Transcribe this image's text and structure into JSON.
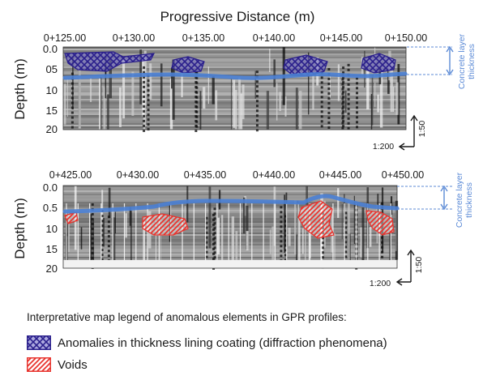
{
  "top_axis_title": "Progressive Distance (m)",
  "profiles": [
    {
      "stations": [
        "0+125.00",
        "0+130.00",
        "0+135.00",
        "0+140.00",
        "0+145.00",
        "0+150.00"
      ],
      "depth_label": "Depth (m)",
      "depth_ticks": [
        "0.0",
        "05",
        "10",
        "15",
        "20"
      ],
      "scale_vertical": "1:50",
      "scale_horizontal": "1:200",
      "thickness_label_lines": [
        "Concrete layer",
        "thickness"
      ],
      "anomaly_type": "coating"
    },
    {
      "stations": [
        "0+425.00",
        "0+430.00",
        "0+435.00",
        "0+440.00",
        "0+445.00",
        "0+450.00"
      ],
      "depth_label": "Depth (m)",
      "depth_ticks": [
        "0.0",
        "0.5",
        "10",
        "15",
        "20"
      ],
      "scale_vertical": "1:50",
      "scale_horizontal": "1:200",
      "thickness_label_lines": [
        "Concrete layer",
        "thickness"
      ],
      "anomaly_type": "void"
    }
  ],
  "legend": {
    "title": "Interpretative map legend of anomalous elements in GPR profiles:",
    "items": [
      {
        "label": "Anomalies in thickness lining coating (diffraction phenomena)",
        "color": "#3a2f9c"
      },
      {
        "label": "Voids",
        "color": "#e8342e"
      }
    ]
  },
  "colors": {
    "interface_line": "#4a7fd4",
    "annotation": "#5b8ad6",
    "coating_anomaly": "#3a2f9c",
    "void_anomaly": "#e8342e"
  }
}
